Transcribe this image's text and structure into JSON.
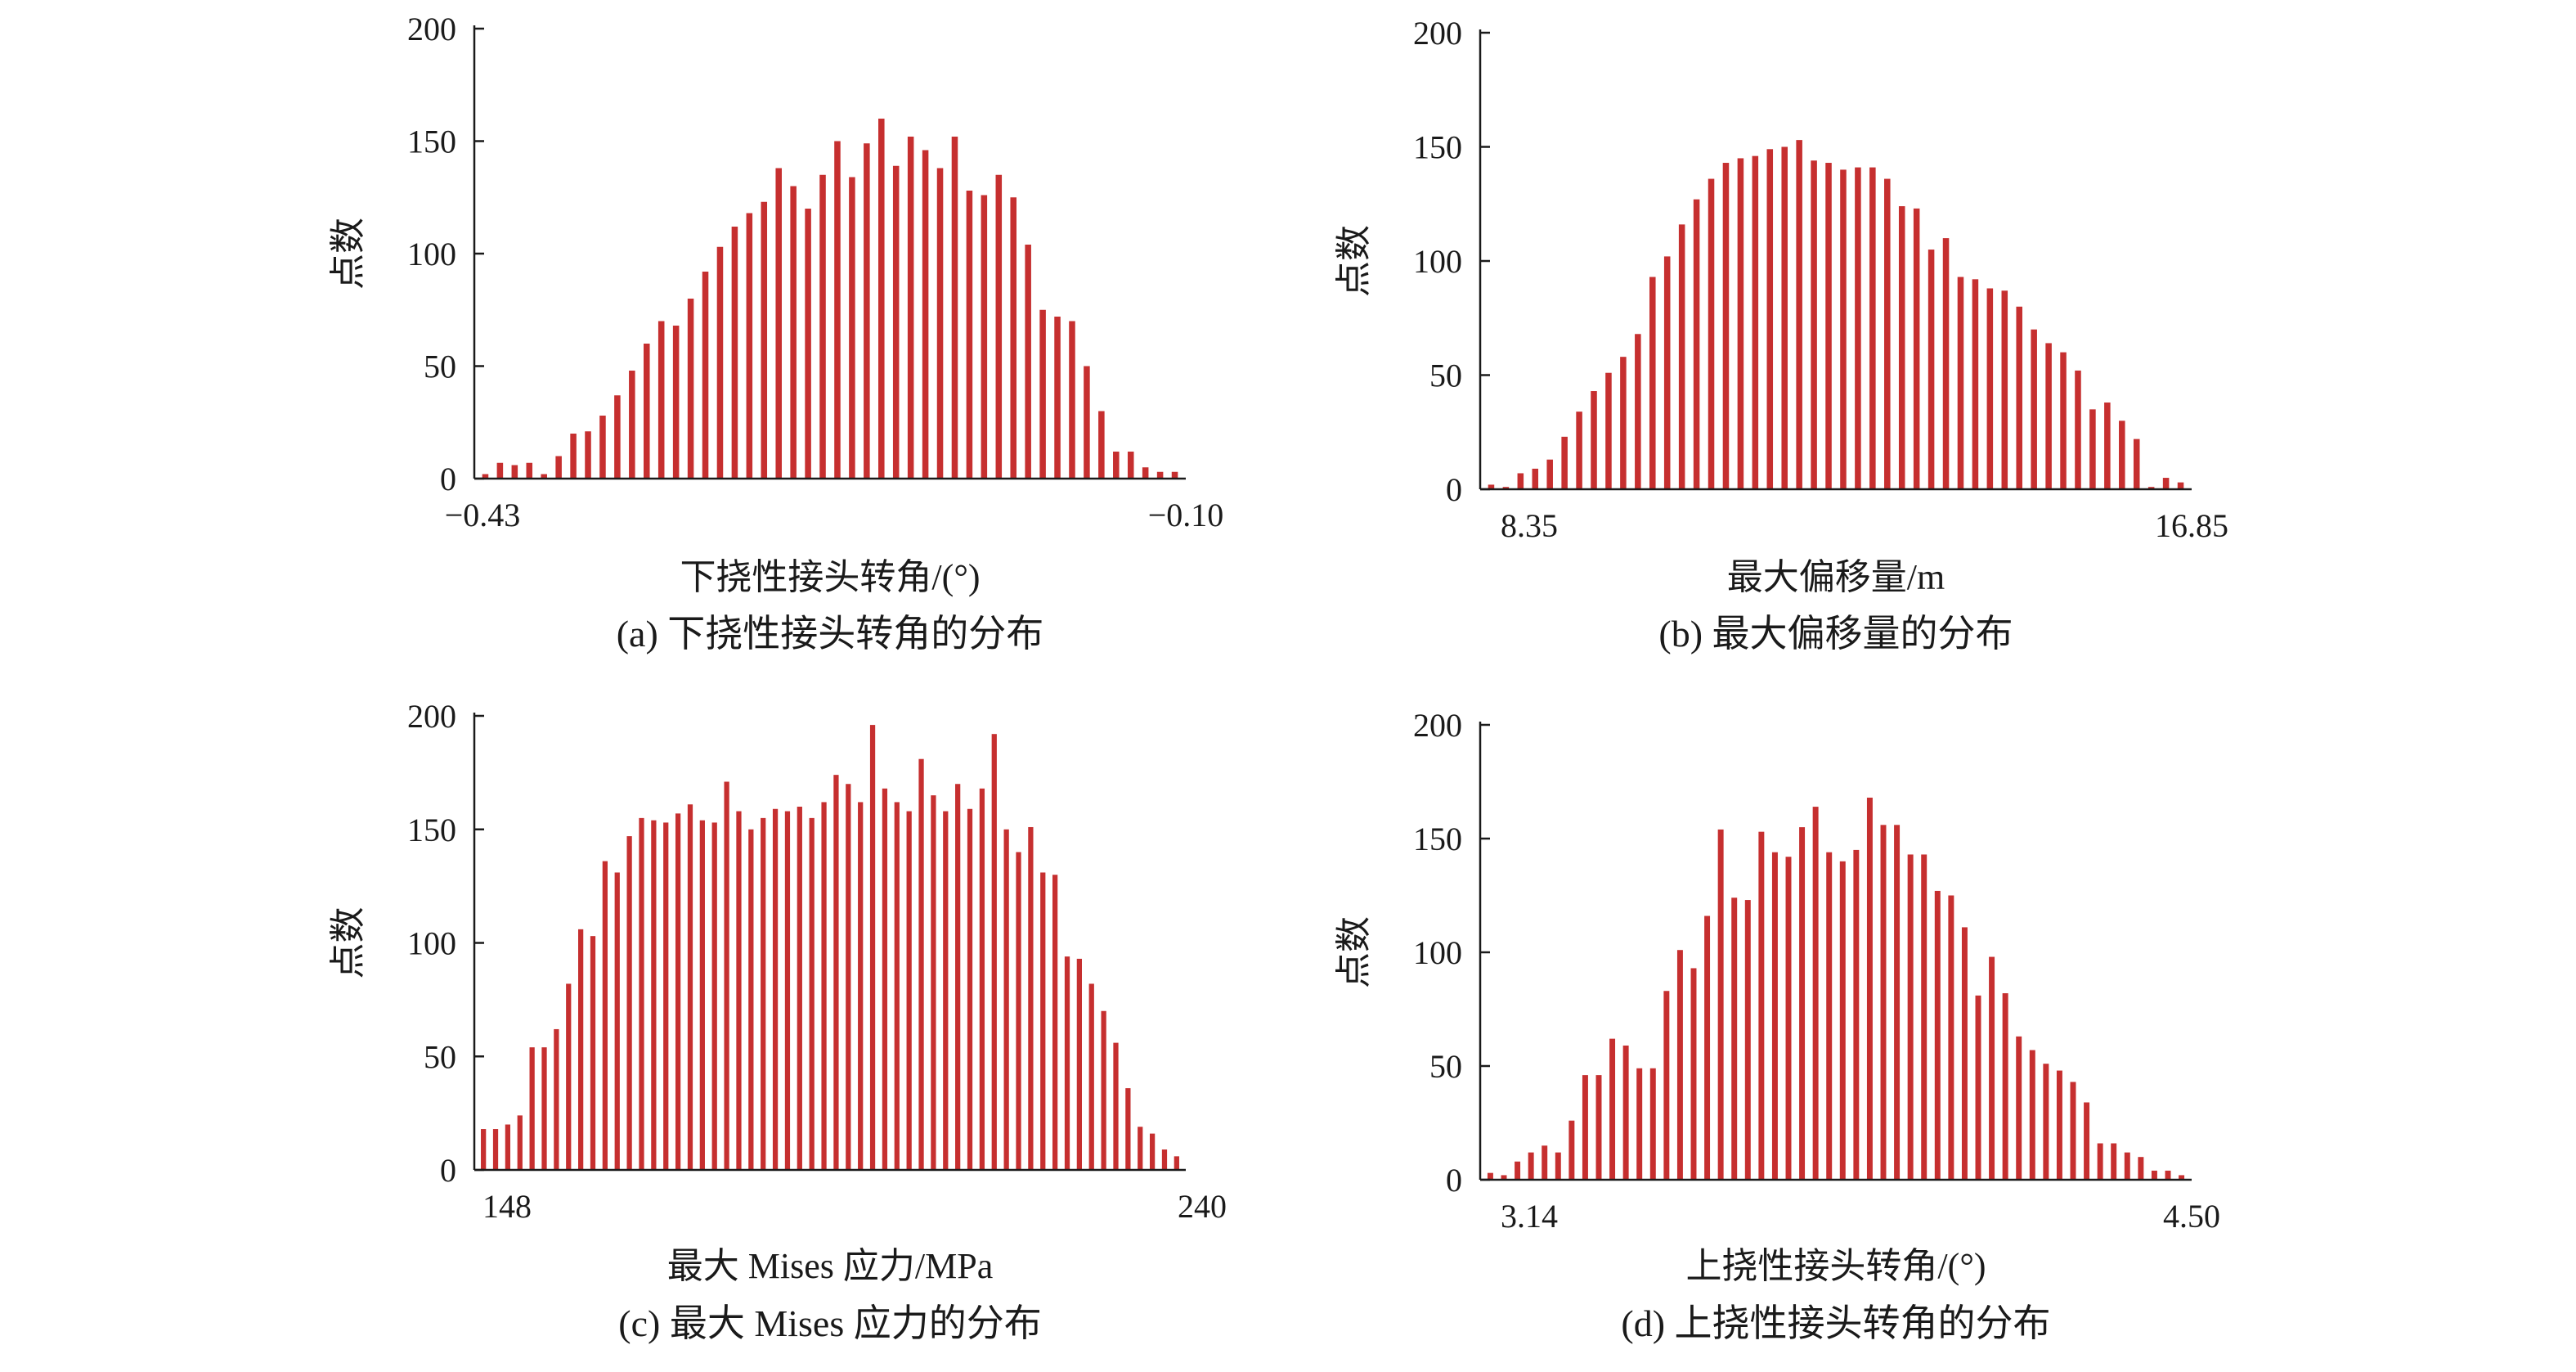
{
  "bar_color": "#c62f2f",
  "axis_color": "#1a1a1a",
  "chart_data": [
    {
      "type": "bar",
      "caption": "(a) 下挠性接头转角的分布",
      "xlabel": "下挠性接头转角/(°)",
      "ylabel": "点数",
      "x_tick_labels": [
        "−0.43",
        "−0.10"
      ],
      "y_ticks": [
        0,
        50,
        100,
        150,
        200
      ],
      "ylim": [
        0,
        200
      ],
      "values": [
        2,
        7,
        6,
        7,
        2,
        10,
        20,
        21,
        28,
        37,
        48,
        60,
        70,
        68,
        80,
        92,
        103,
        112,
        118,
        123,
        138,
        130,
        120,
        135,
        150,
        134,
        149,
        160,
        139,
        152,
        146,
        138,
        152,
        128,
        126,
        135,
        125,
        104,
        75,
        72,
        70,
        50,
        30,
        12,
        12,
        5,
        3,
        3
      ]
    },
    {
      "type": "bar",
      "caption": "(b) 最大偏移量的分布",
      "xlabel": "最大偏移量/m",
      "ylabel": "点数",
      "x_tick_labels": [
        "8.35",
        "16.85"
      ],
      "y_ticks": [
        0,
        50,
        100,
        150,
        200
      ],
      "ylim": [
        0,
        200
      ],
      "values": [
        2,
        1,
        7,
        9,
        13,
        23,
        34,
        43,
        51,
        58,
        68,
        93,
        102,
        116,
        127,
        136,
        143,
        145,
        146,
        149,
        150,
        153,
        144,
        143,
        140,
        141,
        141,
        136,
        124,
        123,
        105,
        110,
        93,
        92,
        88,
        87,
        80,
        70,
        64,
        60,
        52,
        35,
        38,
        30,
        22,
        1,
        5,
        3
      ]
    },
    {
      "type": "bar",
      "caption": "(c) 最大 Mises 应力的分布",
      "xlabel": "最大 Mises 应力/MPa",
      "ylabel": "点数",
      "x_tick_labels": [
        "148",
        "240"
      ],
      "y_ticks": [
        0,
        50,
        100,
        150,
        200
      ],
      "ylim": [
        0,
        200
      ],
      "values": [
        18,
        18,
        20,
        24,
        54,
        54,
        62,
        82,
        106,
        103,
        136,
        131,
        147,
        155,
        154,
        153,
        157,
        161,
        154,
        153,
        171,
        158,
        150,
        155,
        159,
        158,
        160,
        155,
        162,
        174,
        170,
        162,
        196,
        168,
        162,
        158,
        181,
        165,
        158,
        170,
        159,
        168,
        192,
        150,
        140,
        151,
        131,
        130,
        94,
        93,
        82,
        70,
        56,
        36,
        19,
        16,
        9,
        6
      ]
    },
    {
      "type": "bar",
      "caption": "(d) 上挠性接头转角的分布",
      "xlabel": "上挠性接头转角/(°)",
      "ylabel": "点数",
      "x_tick_labels": [
        "3.14",
        "4.50"
      ],
      "y_ticks": [
        0,
        50,
        100,
        150,
        200
      ],
      "ylim": [
        0,
        200
      ],
      "values": [
        3,
        2,
        8,
        12,
        15,
        12,
        26,
        46,
        46,
        62,
        59,
        49,
        49,
        83,
        101,
        93,
        116,
        154,
        124,
        123,
        153,
        144,
        142,
        155,
        164,
        144,
        140,
        145,
        168,
        156,
        156,
        143,
        143,
        127,
        125,
        111,
        81,
        98,
        82,
        63,
        57,
        51,
        48,
        43,
        34,
        16,
        16,
        12,
        10,
        4,
        4,
        2
      ]
    }
  ]
}
